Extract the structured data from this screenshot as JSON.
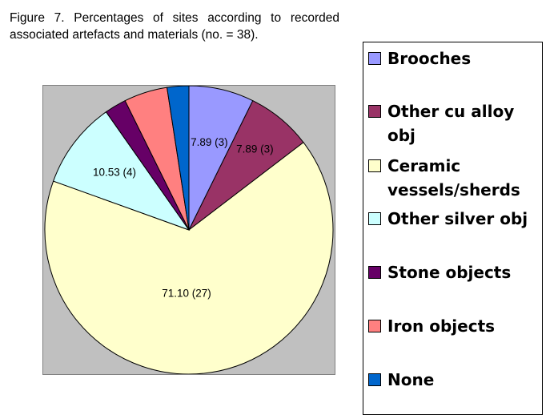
{
  "caption": "Figure 7. Percentages of sites according to recorded associated artefacts and materials (no. = 38).",
  "colors": {
    "plot_background": "#c0c0c0",
    "slice_outline": "#000000"
  },
  "chart_data": {
    "type": "pie",
    "start_angle_deg": 0,
    "direction": "clockwise",
    "legend_position": "right",
    "slices": [
      {
        "label": "Brooches",
        "value": 7.89,
        "data_label": "7.89 (3)",
        "color": "#9999ff"
      },
      {
        "label": "Other cu alloy obj",
        "value": 7.89,
        "data_label": "7.89 (3)",
        "color": "#993366"
      },
      {
        "label": "Ceramic vessels/sherds",
        "value": 71.1,
        "data_label": "71.10 (27)",
        "color": "#ffffcc"
      },
      {
        "label": "Other silver obj",
        "value": 10.53,
        "data_label": "10.53 (4)",
        "color": "#ccffff"
      },
      {
        "label": "Stone objects",
        "value": 2.63,
        "data_label": "",
        "color": "#660066"
      },
      {
        "label": "Iron objects",
        "value": 5.26,
        "data_label": "",
        "color": "#ff8080"
      },
      {
        "label": "None",
        "value": 2.63,
        "data_label": "",
        "color": "#0066cc"
      }
    ]
  }
}
